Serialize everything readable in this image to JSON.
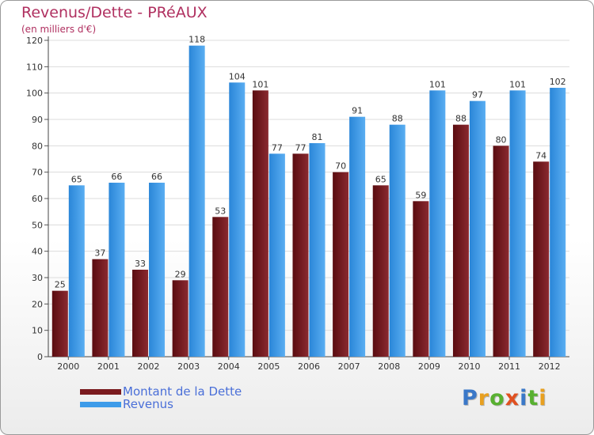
{
  "chart_data": {
    "type": "bar",
    "title": "Revenus/Dette - PRéAUX",
    "subtitle": "(en milliers d'€)",
    "categories": [
      "2000",
      "2001",
      "2002",
      "2003",
      "2004",
      "2005",
      "2006",
      "2007",
      "2008",
      "2009",
      "2010",
      "2011",
      "2012"
    ],
    "series": [
      {
        "name": "Montant de la Dette",
        "color": "#7a1a1e",
        "values": [
          25,
          37,
          33,
          29,
          53,
          101,
          77,
          70,
          65,
          59,
          88,
          80,
          74
        ]
      },
      {
        "name": "Revenus",
        "color": "#3d9be9",
        "values": [
          65,
          66,
          66,
          118,
          104,
          77,
          81,
          91,
          88,
          101,
          97,
          101,
          102
        ]
      }
    ],
    "ylim": [
      0,
      120
    ],
    "yticks": [
      0,
      10,
      20,
      30,
      40,
      50,
      60,
      70,
      80,
      90,
      100,
      110,
      120
    ],
    "grid": true,
    "legend": "bottom-left"
  },
  "logo": {
    "letters": [
      {
        "ch": "P",
        "color": "#3a78c8"
      },
      {
        "ch": "r",
        "color": "#e8a020"
      },
      {
        "ch": "o",
        "color": "#58b030"
      },
      {
        "ch": "x",
        "color": "#e05020"
      },
      {
        "ch": "i",
        "color": "#3a78c8"
      },
      {
        "ch": "t",
        "color": "#58b030"
      },
      {
        "ch": "i",
        "color": "#e8a020"
      }
    ]
  }
}
